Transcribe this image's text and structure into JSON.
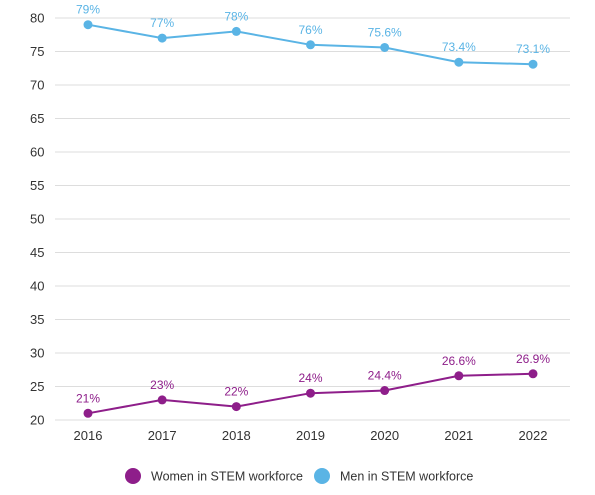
{
  "chart_data": {
    "type": "line",
    "categories": [
      "2016",
      "2017",
      "2018",
      "2019",
      "2020",
      "2021",
      "2022"
    ],
    "ylim": [
      20,
      80
    ],
    "yticks": [
      20,
      25,
      30,
      35,
      40,
      45,
      50,
      55,
      60,
      65,
      70,
      75,
      80
    ],
    "grid": true,
    "legend_position": "bottom-center",
    "series": [
      {
        "name": "Women in STEM workforce",
        "color": "#8e1e8a",
        "values": [
          21,
          23,
          22,
          24,
          24.4,
          26.6,
          26.9
        ],
        "labels": [
          "21%",
          "23%",
          "22%",
          "24%",
          "24.4%",
          "26.6%",
          "26.9%"
        ]
      },
      {
        "name": "Men in STEM workforce",
        "color": "#5ab4e5",
        "values": [
          79,
          77,
          78,
          76,
          75.6,
          73.4,
          73.1
        ],
        "labels": [
          "79%",
          "77%",
          "78%",
          "76%",
          "75.6%",
          "73.4%",
          "73.1%"
        ]
      }
    ]
  }
}
